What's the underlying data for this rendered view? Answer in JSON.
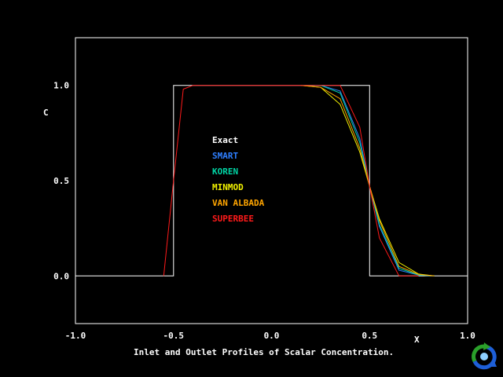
{
  "chart_data": {
    "type": "line",
    "title": "",
    "xlabel": "X",
    "ylabel": "C",
    "xlim": [
      -1.0,
      1.0
    ],
    "ylim": [
      -0.25,
      1.25
    ],
    "x_ticks": [
      "-1.0",
      "-0.5",
      "0.0",
      "0.5",
      "1.0"
    ],
    "y_ticks": [
      "0.0",
      "0.5",
      "1.0"
    ],
    "grid": false,
    "legend_placement": "center-left inside plot",
    "series": [
      {
        "name": "Exact",
        "color": "#ffffff",
        "x": [
          -1.0,
          -0.5,
          -0.5,
          0.5,
          0.5,
          1.0
        ],
        "y": [
          0.0,
          0.0,
          1.0,
          1.0,
          0.0,
          0.0
        ]
      },
      {
        "name": "SMART",
        "color": "#2f7fff",
        "x": [
          0.15,
          0.25,
          0.35,
          0.45,
          0.5,
          0.55,
          0.65,
          0.75,
          0.83
        ],
        "y": [
          1.0,
          1.0,
          0.97,
          0.72,
          0.47,
          0.26,
          0.03,
          0.005,
          0.0
        ]
      },
      {
        "name": "KOREN",
        "color": "#00d5a5",
        "x": [
          0.15,
          0.25,
          0.35,
          0.45,
          0.5,
          0.55,
          0.65,
          0.75,
          0.83
        ],
        "y": [
          1.0,
          1.0,
          0.96,
          0.7,
          0.47,
          0.27,
          0.04,
          0.005,
          0.0
        ]
      },
      {
        "name": "MINMOD",
        "color": "#f0f000",
        "x": [
          0.15,
          0.25,
          0.35,
          0.45,
          0.5,
          0.55,
          0.65,
          0.75,
          0.83
        ],
        "y": [
          1.0,
          0.99,
          0.9,
          0.65,
          0.47,
          0.3,
          0.07,
          0.01,
          0.0
        ]
      },
      {
        "name": "VAN ALBADA",
        "color": "#ffa500",
        "x": [
          0.15,
          0.25,
          0.35,
          0.45,
          0.5,
          0.55,
          0.65,
          0.75,
          0.83
        ],
        "y": [
          1.0,
          0.99,
          0.93,
          0.67,
          0.47,
          0.29,
          0.05,
          0.008,
          0.0
        ]
      },
      {
        "name": "SUPERBEE",
        "color": "#ff1a1a",
        "x": [
          -0.55,
          -0.5,
          -0.45,
          -0.4,
          -0.35,
          0.15,
          0.25,
          0.35,
          0.45,
          0.5,
          0.55,
          0.65,
          0.75
        ],
        "y": [
          0.0,
          0.5,
          0.98,
          1.0,
          1.0,
          1.0,
          1.0,
          1.0,
          0.78,
          0.47,
          0.2,
          0.0,
          0.0
        ]
      }
    ]
  },
  "caption": "Inlet and Outlet Profiles of Scalar Concentration.",
  "logo_icon": "cycle-arrows-icon"
}
